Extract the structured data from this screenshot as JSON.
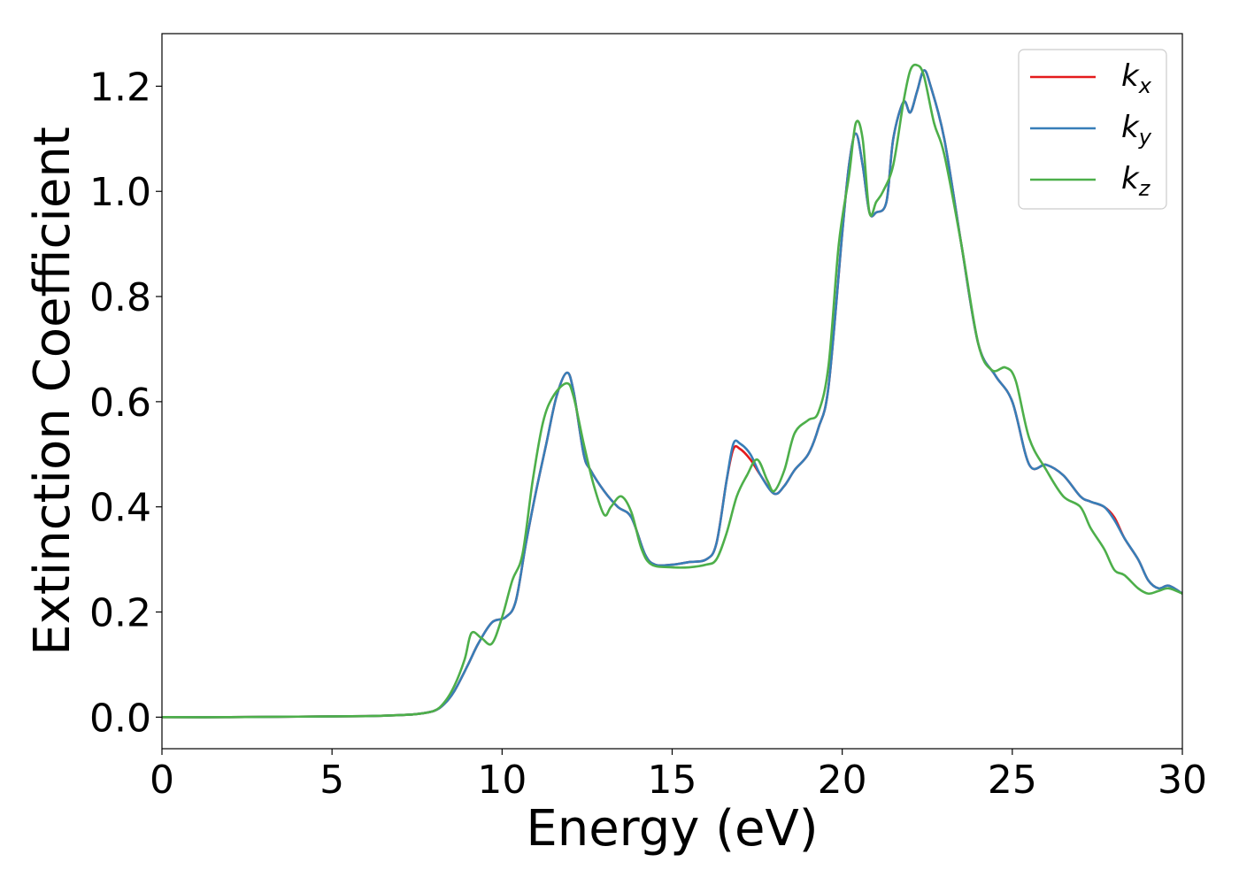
{
  "chart_data": {
    "type": "line",
    "xlabel": "Energy (eV)",
    "ylabel": "Extinction Coefficient",
    "xlim": [
      0,
      30
    ],
    "ylim": [
      -0.06,
      1.3
    ],
    "xticks": [
      0,
      5,
      10,
      15,
      20,
      25,
      30
    ],
    "xtick_labels": [
      "0",
      "5",
      "10",
      "15",
      "20",
      "25",
      "30"
    ],
    "yticks": [
      0.0,
      0.2,
      0.4,
      0.6,
      0.8,
      1.0,
      1.2
    ],
    "ytick_labels": [
      "0.0",
      "0.2",
      "0.4",
      "0.6",
      "0.8",
      "1.0",
      "1.2"
    ],
    "grid": false,
    "legend_position": "top-right",
    "series": [
      {
        "name": "kx",
        "label_base": "k",
        "label_sub": "x",
        "color": "#e41a1c",
        "x": [
          0,
          2,
          4,
          6,
          7,
          7.5,
          8,
          8.3,
          8.6,
          9,
          9.3,
          9.7,
          10.1,
          10.4,
          10.7,
          11,
          11.3,
          11.6,
          11.9,
          12.1,
          12.4,
          12.6,
          13,
          13.4,
          13.8,
          14.2,
          14.5,
          15,
          15.5,
          16,
          16.3,
          16.6,
          16.8,
          17,
          17.3,
          17.6,
          18,
          18.3,
          18.6,
          19,
          19.3,
          19.6,
          20,
          20.2,
          20.4,
          20.6,
          20.8,
          21,
          21.3,
          21.5,
          21.8,
          22,
          22.2,
          22.4,
          22.6,
          23,
          23.5,
          24,
          24.5,
          25,
          25.5,
          26,
          26.5,
          27,
          27.3,
          27.7,
          28,
          28.3,
          28.7,
          29,
          29.3,
          29.6,
          30
        ],
        "y": [
          0,
          0,
          0.001,
          0.002,
          0.004,
          0.006,
          0.012,
          0.025,
          0.05,
          0.1,
          0.14,
          0.18,
          0.19,
          0.22,
          0.33,
          0.43,
          0.52,
          0.61,
          0.655,
          0.62,
          0.5,
          0.47,
          0.43,
          0.4,
          0.38,
          0.31,
          0.29,
          0.29,
          0.295,
          0.3,
          0.33,
          0.45,
          0.51,
          0.51,
          0.49,
          0.46,
          0.425,
          0.44,
          0.47,
          0.5,
          0.55,
          0.63,
          0.92,
          1.05,
          1.11,
          1.05,
          0.96,
          0.96,
          0.98,
          1.1,
          1.17,
          1.15,
          1.19,
          1.23,
          1.2,
          1.1,
          0.9,
          0.71,
          0.65,
          0.6,
          0.48,
          0.48,
          0.46,
          0.42,
          0.41,
          0.4,
          0.38,
          0.34,
          0.3,
          0.26,
          0.245,
          0.25,
          0.235
        ]
      },
      {
        "name": "ky",
        "label_base": "k",
        "label_sub": "y",
        "color": "#377eb8",
        "x": [
          0,
          2,
          4,
          6,
          7,
          7.5,
          8,
          8.3,
          8.6,
          9,
          9.3,
          9.7,
          10.1,
          10.4,
          10.7,
          11,
          11.3,
          11.6,
          11.9,
          12.1,
          12.4,
          12.6,
          13,
          13.4,
          13.8,
          14.2,
          14.5,
          15,
          15.5,
          16,
          16.3,
          16.6,
          16.8,
          17,
          17.3,
          17.6,
          18,
          18.3,
          18.6,
          19,
          19.3,
          19.6,
          20,
          20.2,
          20.4,
          20.6,
          20.8,
          21,
          21.3,
          21.5,
          21.8,
          22,
          22.2,
          22.4,
          22.6,
          23,
          23.5,
          24,
          24.5,
          25,
          25.5,
          26,
          26.5,
          27,
          27.3,
          27.7,
          28,
          28.3,
          28.7,
          29,
          29.3,
          29.6,
          30
        ],
        "y": [
          0,
          0,
          0.001,
          0.002,
          0.004,
          0.006,
          0.012,
          0.025,
          0.05,
          0.1,
          0.14,
          0.18,
          0.19,
          0.22,
          0.33,
          0.43,
          0.52,
          0.61,
          0.655,
          0.62,
          0.5,
          0.47,
          0.43,
          0.4,
          0.38,
          0.31,
          0.29,
          0.29,
          0.295,
          0.3,
          0.33,
          0.45,
          0.52,
          0.52,
          0.5,
          0.46,
          0.425,
          0.44,
          0.47,
          0.5,
          0.55,
          0.63,
          0.92,
          1.05,
          1.11,
          1.05,
          0.96,
          0.96,
          0.98,
          1.1,
          1.17,
          1.15,
          1.19,
          1.23,
          1.2,
          1.1,
          0.9,
          0.71,
          0.65,
          0.6,
          0.48,
          0.48,
          0.46,
          0.42,
          0.41,
          0.4,
          0.375,
          0.34,
          0.3,
          0.26,
          0.245,
          0.25,
          0.235
        ]
      },
      {
        "name": "kz",
        "label_base": "k",
        "label_sub": "z",
        "color": "#4daf4a",
        "x": [
          0,
          2,
          4,
          6,
          7,
          7.5,
          8,
          8.3,
          8.6,
          8.9,
          9.1,
          9.4,
          9.7,
          10,
          10.3,
          10.6,
          10.9,
          11.2,
          11.5,
          11.9,
          12.1,
          12.4,
          12.7,
          13,
          13.2,
          13.5,
          13.8,
          14.1,
          14.4,
          15,
          15.5,
          16,
          16.3,
          16.6,
          16.9,
          17.2,
          17.5,
          17.8,
          18,
          18.3,
          18.6,
          19,
          19.3,
          19.6,
          19.9,
          20.2,
          20.4,
          20.6,
          20.8,
          21,
          21.2,
          21.5,
          21.8,
          22,
          22.2,
          22.4,
          22.7,
          23,
          23.5,
          24,
          24.4,
          24.8,
          25.1,
          25.5,
          26,
          26.5,
          27,
          27.3,
          27.7,
          28,
          28.3,
          28.7,
          29,
          29.3,
          29.6,
          30
        ],
        "y": [
          0,
          0,
          0.001,
          0.002,
          0.004,
          0.006,
          0.012,
          0.028,
          0.06,
          0.11,
          0.16,
          0.15,
          0.14,
          0.19,
          0.26,
          0.31,
          0.45,
          0.56,
          0.61,
          0.635,
          0.61,
          0.52,
          0.44,
          0.385,
          0.4,
          0.42,
          0.39,
          0.32,
          0.29,
          0.285,
          0.285,
          0.29,
          0.3,
          0.35,
          0.42,
          0.46,
          0.49,
          0.45,
          0.43,
          0.47,
          0.54,
          0.565,
          0.58,
          0.67,
          0.9,
          1.03,
          1.13,
          1.1,
          0.96,
          0.98,
          1.0,
          1.05,
          1.17,
          1.23,
          1.24,
          1.22,
          1.13,
          1.07,
          0.9,
          0.71,
          0.66,
          0.665,
          0.64,
          0.53,
          0.47,
          0.42,
          0.4,
          0.36,
          0.32,
          0.28,
          0.27,
          0.245,
          0.235,
          0.24,
          0.245,
          0.235
        ]
      }
    ]
  }
}
